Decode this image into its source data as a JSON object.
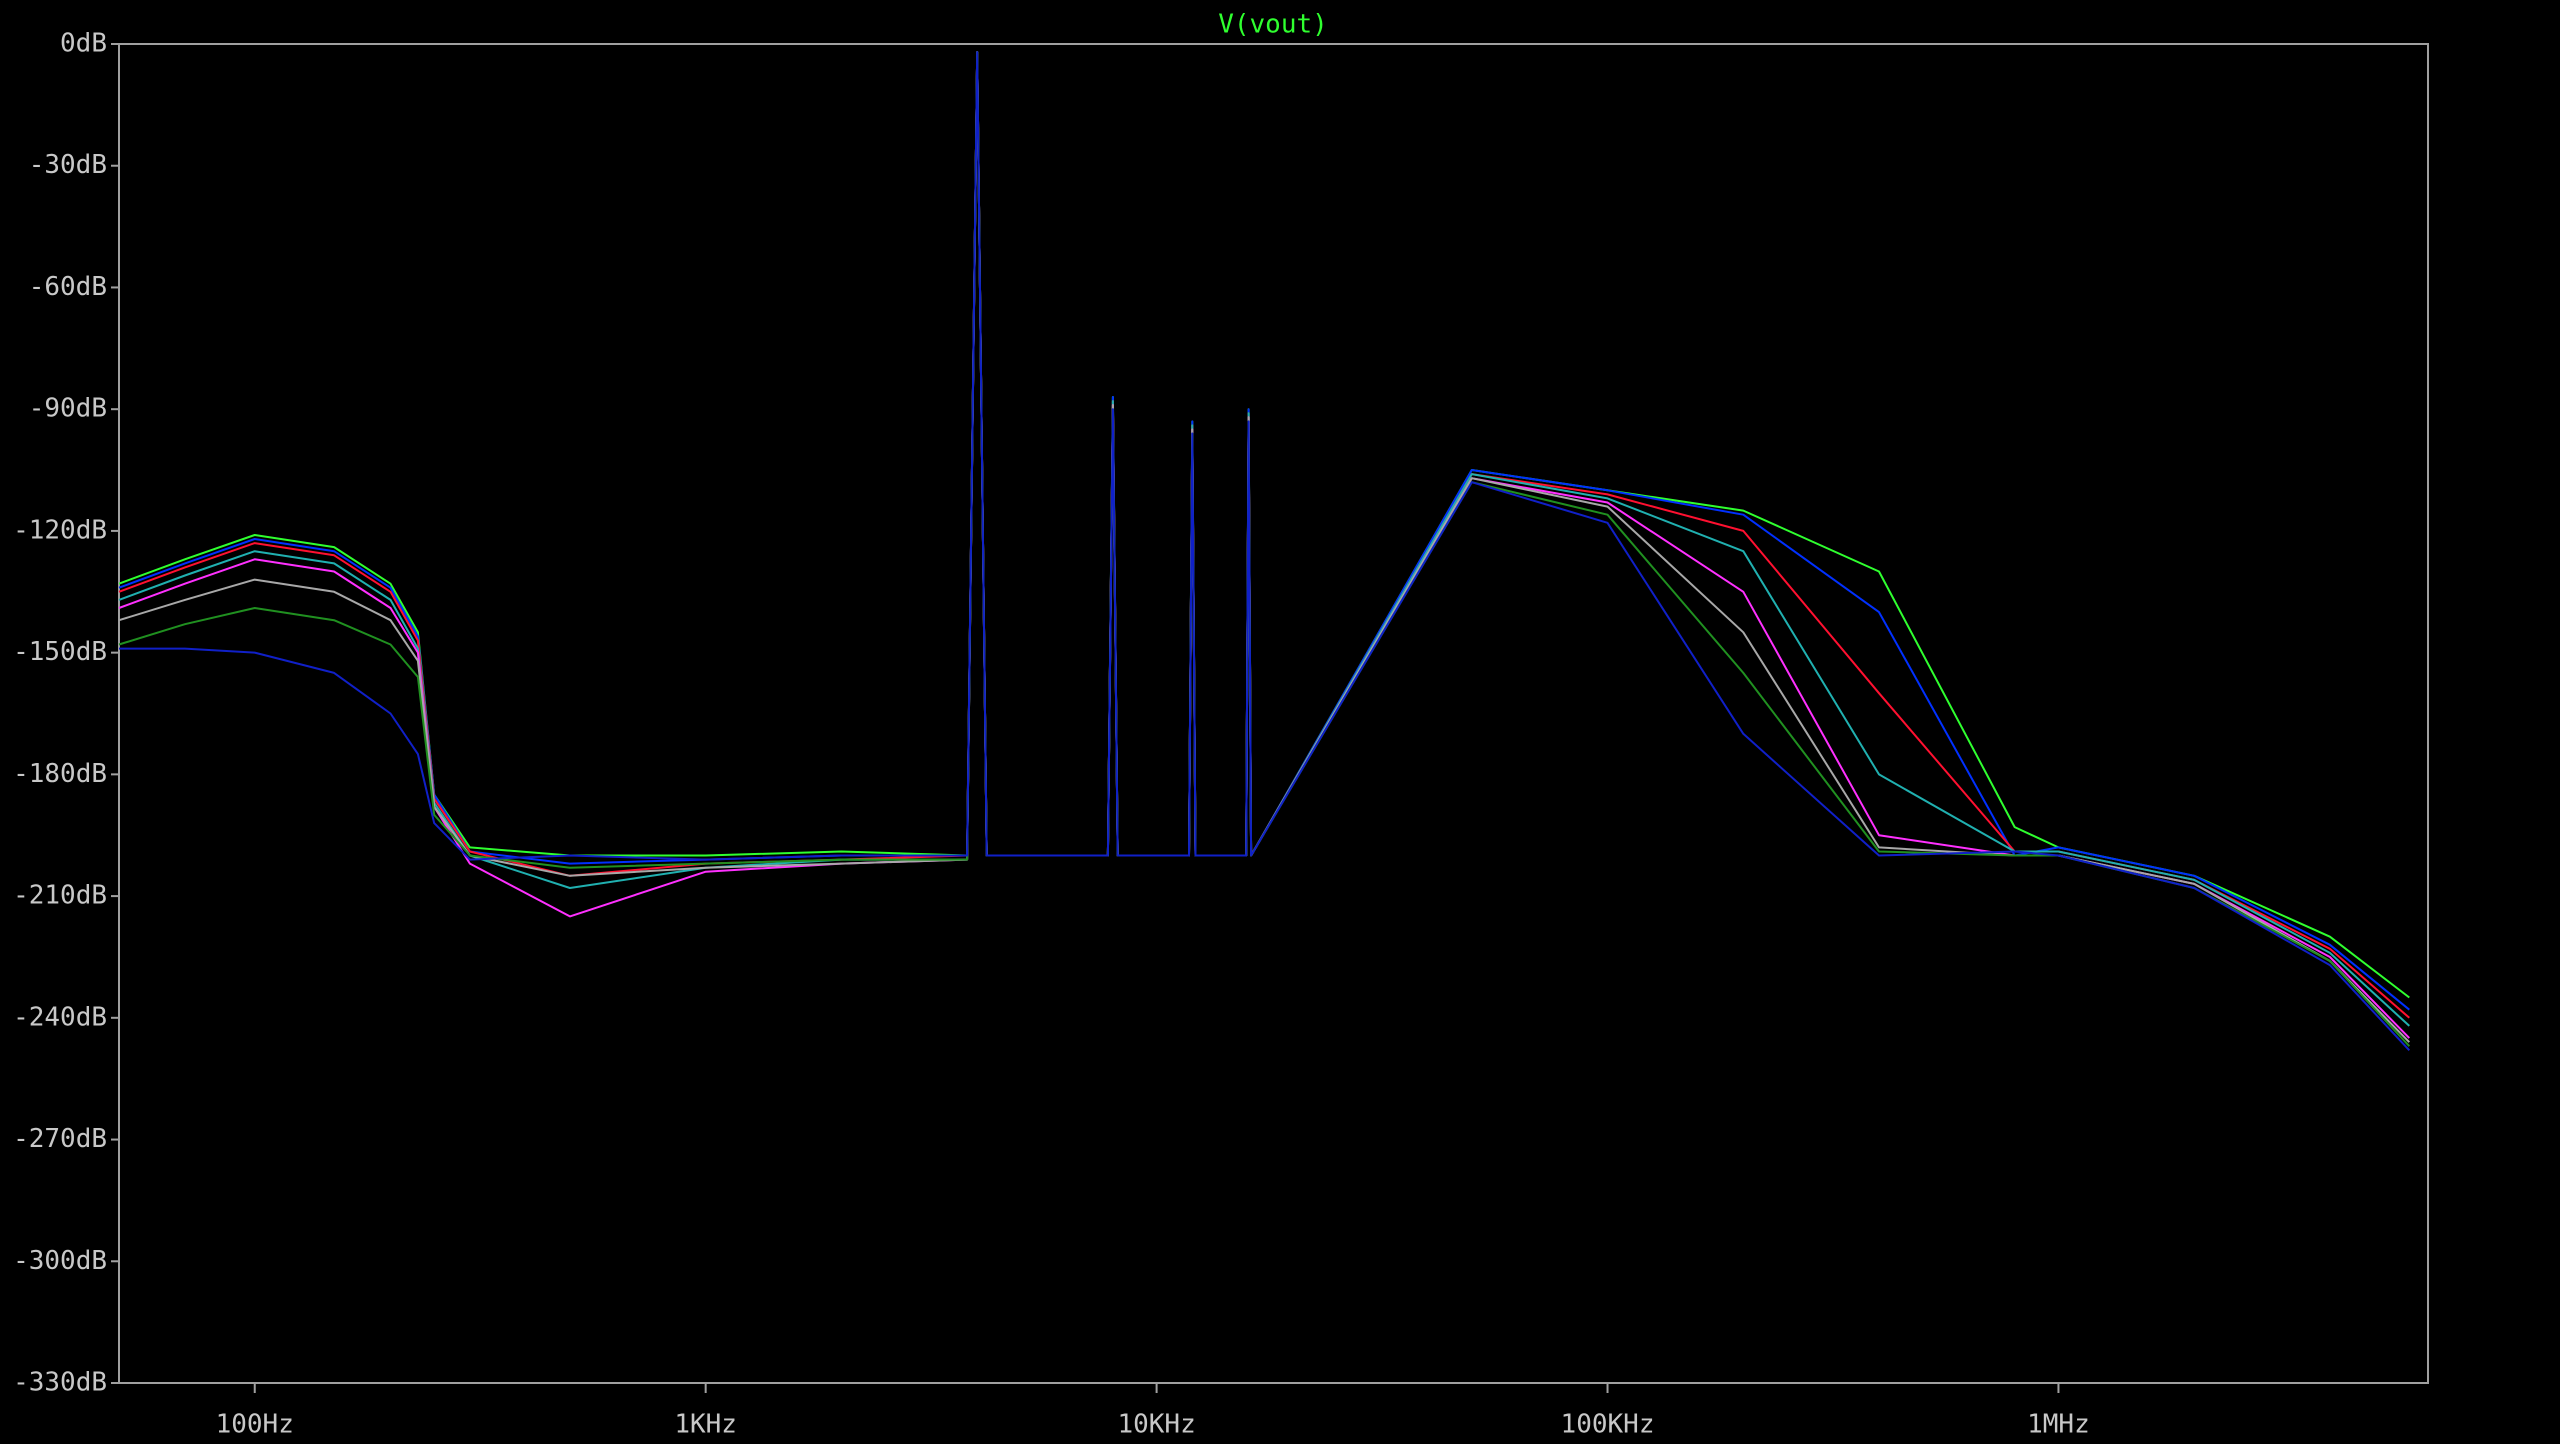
{
  "chart_data": {
    "type": "line",
    "title": "V(vout)",
    "log_x": true,
    "xlim": [
      50,
      6600000
    ],
    "ylim": [
      -330,
      0
    ],
    "xticks": [
      {
        "value": 100,
        "label": "100Hz"
      },
      {
        "value": 1000,
        "label": "1KHz"
      },
      {
        "value": 10000,
        "label": "10KHz"
      },
      {
        "value": 100000,
        "label": "100KHz"
      },
      {
        "value": 1000000,
        "label": "1MHz"
      }
    ],
    "yticks": [
      {
        "value": 0,
        "label": "0dB"
      },
      {
        "value": -30,
        "label": "-30dB"
      },
      {
        "value": -60,
        "label": "-60dB"
      },
      {
        "value": -90,
        "label": "-90dB"
      },
      {
        "value": -120,
        "label": "-120dB"
      },
      {
        "value": -150,
        "label": "-150dB"
      },
      {
        "value": -180,
        "label": "-180dB"
      },
      {
        "value": -210,
        "label": "-210dB"
      },
      {
        "value": -240,
        "label": "-240dB"
      },
      {
        "value": -270,
        "label": "-270dB"
      },
      {
        "value": -300,
        "label": "-300dB"
      },
      {
        "value": -330,
        "label": "-330dB"
      }
    ],
    "x": [
      50,
      70,
      100,
      150,
      200,
      230,
      250,
      300,
      500,
      1000,
      2000,
      3800,
      4000,
      4200,
      7800,
      8000,
      8200,
      11800,
      12000,
      12200,
      15800,
      16000,
      16200,
      50000,
      100000,
      200000,
      400000,
      800000,
      1000000,
      2000000,
      4000000,
      6000000
    ],
    "series": [
      {
        "color": "#2fff2f",
        "values": [
          -133,
          -127,
          -121,
          -124,
          -133,
          -145,
          -185,
          -198,
          -200,
          -200,
          -199,
          -200,
          -2,
          -200,
          -200,
          -87,
          -200,
          -200,
          -93,
          -200,
          -200,
          -90,
          -200,
          -105,
          -110,
          -115,
          -130,
          -193,
          -198,
          -205,
          -220,
          -235
        ]
      },
      {
        "color": "#0030ff",
        "values": [
          -134,
          -128,
          -122,
          -125,
          -134,
          -146,
          -185,
          -199,
          -202,
          -201,
          -200,
          -200,
          -2,
          -200,
          -200,
          -87,
          -200,
          -200,
          -93,
          -200,
          -200,
          -90,
          -200,
          -105,
          -110,
          -116,
          -140,
          -200,
          -198,
          -205,
          -222,
          -238
        ]
      },
      {
        "color": "#ff1030",
        "values": [
          -135,
          -129,
          -123,
          -126,
          -135,
          -147,
          -186,
          -199,
          -205,
          -202,
          -201,
          -200,
          -2,
          -200,
          -200,
          -88,
          -200,
          -200,
          -94,
          -200,
          -200,
          -91,
          -200,
          -106,
          -111,
          -120,
          -160,
          -199,
          -199,
          -206,
          -223,
          -240
        ]
      },
      {
        "color": "#20b0b0",
        "values": [
          -137,
          -131,
          -125,
          -128,
          -137,
          -149,
          -187,
          -200,
          -208,
          -203,
          -201,
          -201,
          -2,
          -200,
          -200,
          -88,
          -200,
          -200,
          -94,
          -200,
          -200,
          -91,
          -200,
          -106,
          -112,
          -125,
          -180,
          -199,
          -199,
          -206,
          -224,
          -242
        ]
      },
      {
        "color": "#ff30ff",
        "values": [
          -139,
          -133,
          -127,
          -130,
          -139,
          -150,
          -188,
          -202,
          -215,
          -204,
          -202,
          -201,
          -2,
          -200,
          -200,
          -89,
          -200,
          -200,
          -95,
          -200,
          -200,
          -92,
          -200,
          -107,
          -113,
          -135,
          -195,
          -200,
          -200,
          -207,
          -225,
          -245
        ]
      },
      {
        "color": "#a8a8a8",
        "values": [
          -142,
          -137,
          -132,
          -135,
          -142,
          -152,
          -188,
          -200,
          -205,
          -203,
          -202,
          -201,
          -2,
          -200,
          -200,
          -89,
          -200,
          -200,
          -95,
          -200,
          -200,
          -92,
          -200,
          -107,
          -114,
          -145,
          -198,
          -200,
          -200,
          -207,
          -226,
          -246
        ]
      },
      {
        "color": "#209020",
        "values": [
          -148,
          -143,
          -139,
          -142,
          -148,
          -156,
          -190,
          -200,
          -203,
          -202,
          -201,
          -201,
          -2,
          -200,
          -200,
          -90,
          -200,
          -200,
          -96,
          -200,
          -200,
          -93,
          -200,
          -108,
          -116,
          -155,
          -199,
          -200,
          -200,
          -208,
          -226,
          -247
        ]
      },
      {
        "color": "#1020c8",
        "values": [
          -149,
          -149,
          -150,
          -155,
          -165,
          -175,
          -192,
          -201,
          -200,
          -201,
          -200,
          -200,
          -2,
          -200,
          -200,
          -90,
          -200,
          -200,
          -96,
          -200,
          -200,
          -93,
          -200,
          -108,
          -118,
          -170,
          -200,
          -199,
          -200,
          -208,
          -227,
          -248
        ]
      }
    ]
  }
}
